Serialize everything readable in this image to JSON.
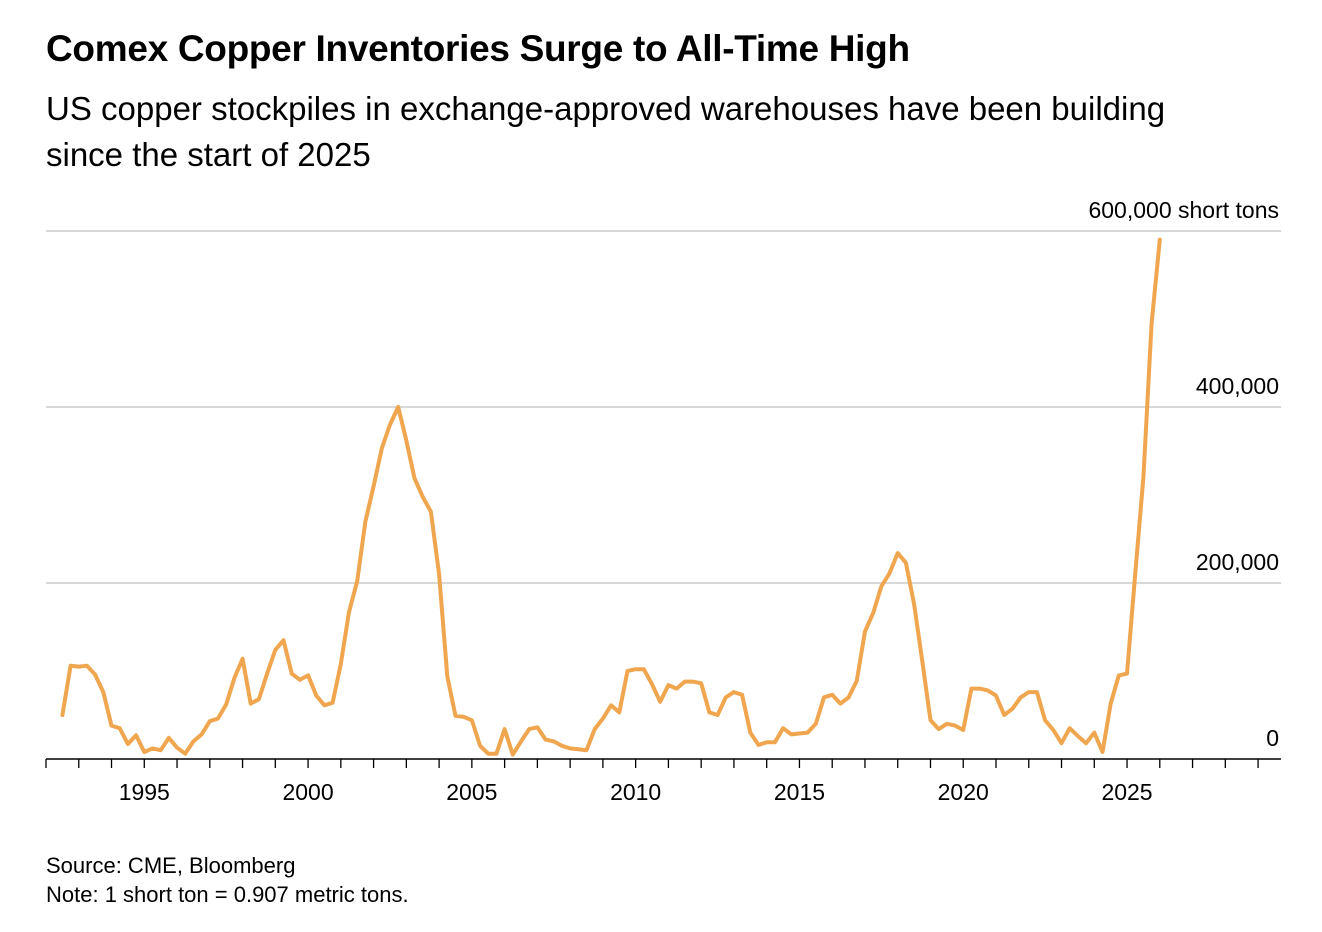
{
  "chart_data": {
    "type": "line",
    "title": "Comex Copper Inventories Surge to All-Time High",
    "subtitle": "US copper stockpiles in exchange-approved warehouses have been building since the start of 2025",
    "unit_label": "600,000 short tons",
    "xlabel": "",
    "ylabel": "",
    "xlim": [
      1992.0,
      2029.7
    ],
    "ylim": [
      0,
      600000
    ],
    "x_ticks": [
      "1995",
      "2000",
      "2005",
      "2010",
      "2015",
      "2020",
      "2025"
    ],
    "y_ticks": [
      {
        "value": 600000,
        "label": "600,000 short tons"
      },
      {
        "value": 400000,
        "label": "400,000"
      },
      {
        "value": 200000,
        "label": "200,000"
      },
      {
        "value": 0,
        "label": "0"
      }
    ],
    "grid": true,
    "line_color": "#f0a54f",
    "series": [
      {
        "values": [
          [
            1992.5,
            50000
          ],
          [
            1992.75,
            106000
          ],
          [
            1993.0,
            105000
          ],
          [
            1993.25,
            106000
          ],
          [
            1993.5,
            96000
          ],
          [
            1993.75,
            76000
          ],
          [
            1994.0,
            38000
          ],
          [
            1994.25,
            35000
          ],
          [
            1994.5,
            17000
          ],
          [
            1994.75,
            27000
          ],
          [
            1995.0,
            8000
          ],
          [
            1995.25,
            12000
          ],
          [
            1995.5,
            10000
          ],
          [
            1995.75,
            24000
          ],
          [
            1996.0,
            13000
          ],
          [
            1996.25,
            6000
          ],
          [
            1996.5,
            20000
          ],
          [
            1996.75,
            28000
          ],
          [
            1997.0,
            43000
          ],
          [
            1997.25,
            46000
          ],
          [
            1997.5,
            62000
          ],
          [
            1997.75,
            92000
          ],
          [
            1998.0,
            114000
          ],
          [
            1998.25,
            63000
          ],
          [
            1998.5,
            68000
          ],
          [
            1998.75,
            97000
          ],
          [
            1999.0,
            124000
          ],
          [
            1999.25,
            135000
          ],
          [
            1999.5,
            97000
          ],
          [
            1999.75,
            90000
          ],
          [
            2000.0,
            95000
          ],
          [
            2000.25,
            72000
          ],
          [
            2000.5,
            61000
          ],
          [
            2000.75,
            64000
          ],
          [
            2001.0,
            108000
          ],
          [
            2001.25,
            167000
          ],
          [
            2001.5,
            202000
          ],
          [
            2001.75,
            270000
          ],
          [
            2002.0,
            310000
          ],
          [
            2002.25,
            353000
          ],
          [
            2002.5,
            380000
          ],
          [
            2002.75,
            400000
          ],
          [
            2003.0,
            362000
          ],
          [
            2003.25,
            319000
          ],
          [
            2003.5,
            298000
          ],
          [
            2003.75,
            281000
          ],
          [
            2004.0,
            210000
          ],
          [
            2004.25,
            94000
          ],
          [
            2004.5,
            49000
          ],
          [
            2004.75,
            48000
          ],
          [
            2005.0,
            44000
          ],
          [
            2005.25,
            15000
          ],
          [
            2005.5,
            6000
          ],
          [
            2005.75,
            6000
          ],
          [
            2006.0,
            34000
          ],
          [
            2006.25,
            5000
          ],
          [
            2006.5,
            20000
          ],
          [
            2006.75,
            34000
          ],
          [
            2007.0,
            36000
          ],
          [
            2007.25,
            22000
          ],
          [
            2007.5,
            20000
          ],
          [
            2007.75,
            15000
          ],
          [
            2008.0,
            12000
          ],
          [
            2008.25,
            11000
          ],
          [
            2008.5,
            10000
          ],
          [
            2008.75,
            34000
          ],
          [
            2009.0,
            46000
          ],
          [
            2009.25,
            61000
          ],
          [
            2009.5,
            53000
          ],
          [
            2009.75,
            100000
          ],
          [
            2010.0,
            102000
          ],
          [
            2010.25,
            102000
          ],
          [
            2010.5,
            85000
          ],
          [
            2010.75,
            65000
          ],
          [
            2011.0,
            84000
          ],
          [
            2011.25,
            80000
          ],
          [
            2011.5,
            88000
          ],
          [
            2011.75,
            88000
          ],
          [
            2012.0,
            86000
          ],
          [
            2012.25,
            53000
          ],
          [
            2012.5,
            50000
          ],
          [
            2012.75,
            70000
          ],
          [
            2013.0,
            76000
          ],
          [
            2013.25,
            73000
          ],
          [
            2013.5,
            30000
          ],
          [
            2013.75,
            16000
          ],
          [
            2014.0,
            19000
          ],
          [
            2014.25,
            19000
          ],
          [
            2014.5,
            35000
          ],
          [
            2014.75,
            28000
          ],
          [
            2015.0,
            29000
          ],
          [
            2015.25,
            30000
          ],
          [
            2015.5,
            40000
          ],
          [
            2015.75,
            70000
          ],
          [
            2016.0,
            73000
          ],
          [
            2016.25,
            63000
          ],
          [
            2016.5,
            70000
          ],
          [
            2016.75,
            89000
          ],
          [
            2017.0,
            145000
          ],
          [
            2017.25,
            166000
          ],
          [
            2017.5,
            196000
          ],
          [
            2017.75,
            211000
          ],
          [
            2018.0,
            234000
          ],
          [
            2018.25,
            223000
          ],
          [
            2018.5,
            176000
          ],
          [
            2018.75,
            111000
          ],
          [
            2019.0,
            44000
          ],
          [
            2019.25,
            34000
          ],
          [
            2019.5,
            40000
          ],
          [
            2019.75,
            38000
          ],
          [
            2020.0,
            33000
          ],
          [
            2020.25,
            80000
          ],
          [
            2020.5,
            80000
          ],
          [
            2020.75,
            78000
          ],
          [
            2021.0,
            72000
          ],
          [
            2021.25,
            50000
          ],
          [
            2021.5,
            57000
          ],
          [
            2021.75,
            70000
          ],
          [
            2022.0,
            76000
          ],
          [
            2022.25,
            76000
          ],
          [
            2022.5,
            44000
          ],
          [
            2022.75,
            33000
          ],
          [
            2023.0,
            18000
          ],
          [
            2023.25,
            35000
          ],
          [
            2023.5,
            26000
          ],
          [
            2023.75,
            18000
          ],
          [
            2024.0,
            30000
          ],
          [
            2024.25,
            8000
          ],
          [
            2024.5,
            63000
          ],
          [
            2024.75,
            95000
          ],
          [
            2025.0,
            97000
          ],
          [
            2025.25,
            210000
          ],
          [
            2025.5,
            320000
          ],
          [
            2025.75,
            495000
          ],
          [
            2026.0,
            590000
          ]
        ]
      }
    ]
  },
  "footer": {
    "source": "Source: CME, Bloomberg",
    "note": "Note: 1 short ton = 0.907 metric tons."
  }
}
